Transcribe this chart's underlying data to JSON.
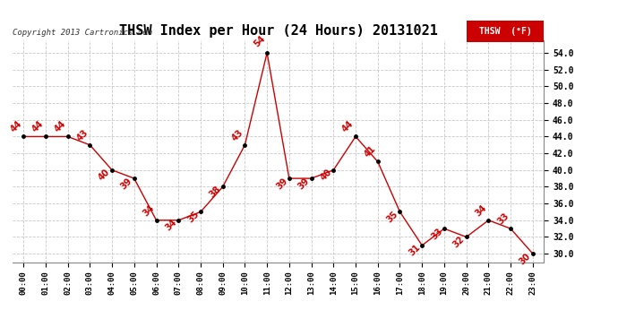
{
  "title": "THSW Index per Hour (24 Hours) 20131021",
  "copyright": "Copyright 2013 Cartronics.com",
  "legend_label": "THSW  (°F)",
  "hours": [
    0,
    1,
    2,
    3,
    4,
    5,
    6,
    7,
    8,
    9,
    10,
    11,
    12,
    13,
    14,
    15,
    16,
    17,
    18,
    19,
    20,
    21,
    22,
    23
  ],
  "values": [
    44,
    44,
    44,
    43,
    40,
    39,
    34,
    34,
    35,
    38,
    43,
    54,
    39,
    39,
    40,
    44,
    41,
    35,
    31,
    33,
    32,
    34,
    33,
    30
  ],
  "xlabels": [
    "00:00",
    "01:00",
    "02:00",
    "03:00",
    "04:00",
    "05:00",
    "06:00",
    "07:00",
    "08:00",
    "09:00",
    "10:00",
    "11:00",
    "12:00",
    "13:00",
    "14:00",
    "15:00",
    "16:00",
    "17:00",
    "18:00",
    "19:00",
    "20:00",
    "21:00",
    "22:00",
    "23:00"
  ],
  "ylim_min": 29.0,
  "ylim_max": 55.5,
  "yticks": [
    30.0,
    32.0,
    34.0,
    36.0,
    38.0,
    40.0,
    42.0,
    44.0,
    46.0,
    48.0,
    50.0,
    52.0,
    54.0
  ],
  "line_color": "#cc0000",
  "marker_color": "#000000",
  "bg_color": "#ffffff",
  "grid_color": "#c8c8c8",
  "title_fontsize": 11,
  "annotation_color": "#cc0000",
  "annotation_fontsize": 7,
  "labels": [
    "44",
    "44",
    "44",
    "43",
    "40",
    "39",
    "34",
    "34",
    "35",
    "38",
    "43",
    "54",
    "39",
    "39",
    "40",
    "44",
    "41",
    "35",
    "31",
    "33",
    "32",
    "34",
    "33",
    "30"
  ]
}
